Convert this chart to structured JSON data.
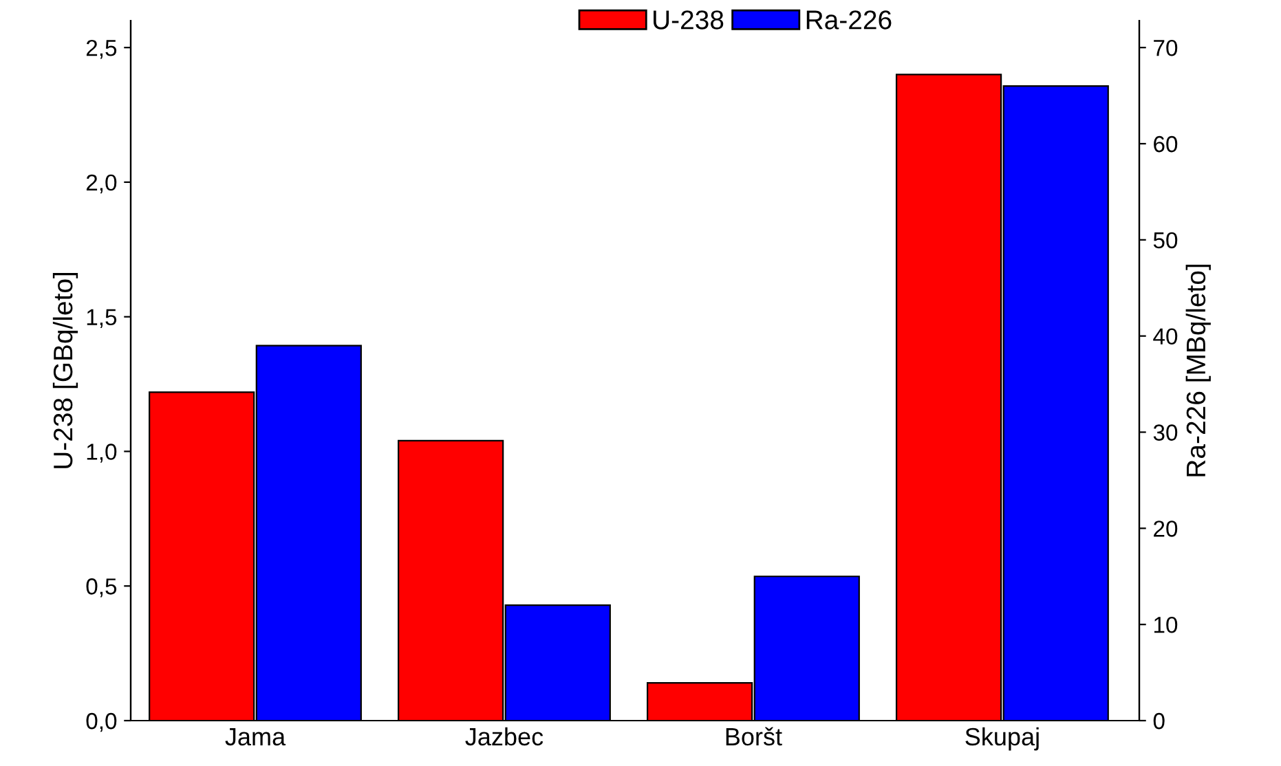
{
  "chart_data": {
    "type": "bar",
    "categories": [
      "Jama",
      "Jazbec",
      "Boršt",
      "Skupaj"
    ],
    "ylabel": "U-238 [GBq/leto]",
    "y2label": "Ra-226 [MBq/leto]",
    "series": [
      {
        "name": "U-238",
        "color": "#ff0000",
        "values": [
          1.22,
          1.04,
          0.14,
          2.4
        ]
      },
      {
        "name": "Ra-226",
        "color": "#0000ff",
        "values": [
          39,
          12,
          15,
          66
        ],
        "axis": "y2"
      }
    ],
    "ylim": [
      0,
      2.6
    ],
    "yticks": [
      {
        "value": 0,
        "label": "0,0"
      },
      {
        "value": 0.5,
        "label": "0,5"
      },
      {
        "value": 1.0,
        "label": "1,0"
      },
      {
        "value": 1.5,
        "label": "1,5"
      },
      {
        "value": 2.0,
        "label": "2,0"
      },
      {
        "value": 2.5,
        "label": "2,5"
      }
    ],
    "y2lim": [
      0,
      72.8
    ],
    "y2ticks": [
      0,
      10,
      20,
      30,
      40,
      50,
      60,
      70
    ],
    "legend": "top",
    "grid": false
  }
}
